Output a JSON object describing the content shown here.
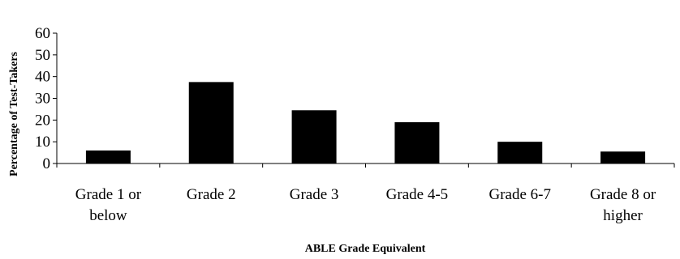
{
  "chart_data": {
    "type": "bar",
    "categories": [
      [
        "Grade 1 or",
        "below"
      ],
      [
        "Grade 2"
      ],
      [
        "Grade 3"
      ],
      [
        "Grade 4-5"
      ],
      [
        "Grade 6-7"
      ],
      [
        "Grade 8 or",
        "higher"
      ]
    ],
    "values": [
      6,
      37.5,
      24.5,
      19,
      10,
      5.5
    ],
    "title": "",
    "xlabel": "ABLE Grade Equivalent",
    "ylabel": "Percentage of Test-Takers",
    "ylim": [
      0,
      60
    ],
    "yticks": [
      0,
      10,
      20,
      30,
      40,
      50,
      60
    ],
    "grid": false,
    "bar_color": "#000000"
  }
}
